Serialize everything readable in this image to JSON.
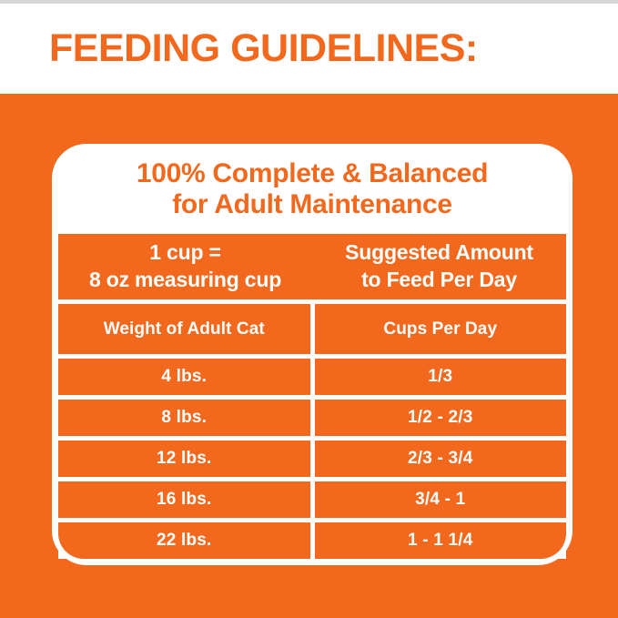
{
  "title": "FEEDING GUIDELINES:",
  "colors": {
    "orange": "#F2691E",
    "white": "#FFFFFF",
    "top_strip": "#D7D7D7"
  },
  "card": {
    "header_line1": "100% Complete & Balanced",
    "header_line2": "for Adult Maintenance",
    "intro": {
      "cup_note_line1": "1 cup =",
      "cup_note_line2": "8 oz measuring cup",
      "suggested_line1": "Suggested Amount",
      "suggested_line2": "to Feed Per Day"
    },
    "columns": {
      "weight": "Weight of Adult Cat",
      "cups": "Cups Per Day"
    },
    "rows": [
      {
        "weight": "4 lbs.",
        "cups": "1/3"
      },
      {
        "weight": "8 lbs.",
        "cups": "1/2 - 2/3"
      },
      {
        "weight": "12 lbs.",
        "cups": "2/3 - 3/4"
      },
      {
        "weight": "16 lbs.",
        "cups": "3/4 - 1"
      },
      {
        "weight": "22 lbs.",
        "cups": "1 - 1 1/4"
      }
    ]
  },
  "chart_data": {
    "type": "table",
    "title": "FEEDING GUIDELINES:",
    "subtitle": "100% Complete & Balanced for Adult Maintenance",
    "notes": [
      "1 cup = 8 oz measuring cup",
      "Suggested Amount to Feed Per Day"
    ],
    "columns": [
      "Weight of Adult Cat",
      "Cups Per Day"
    ],
    "rows": [
      [
        "4 lbs.",
        "1/3"
      ],
      [
        "8 lbs.",
        "1/2 - 2/3"
      ],
      [
        "12 lbs.",
        "2/3 - 3/4"
      ],
      [
        "16 lbs.",
        "3/4 - 1"
      ],
      [
        "22 lbs.",
        "1 - 1 1/4"
      ]
    ],
    "layout": {
      "grid": "white gridlines on orange cells",
      "legend": "none"
    }
  }
}
